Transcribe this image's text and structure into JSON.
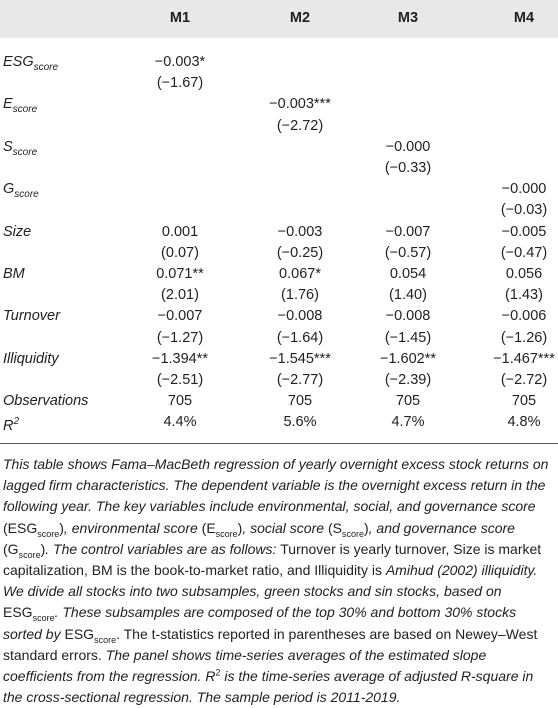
{
  "table": {
    "header": [
      "M1",
      "M2",
      "M3",
      "M4"
    ],
    "rows": [
      {
        "label": "ESG",
        "sub": "score",
        "values": [
          "−0.003*",
          null,
          null,
          null
        ],
        "t": [
          "(−1.67)",
          null,
          null,
          null
        ]
      },
      {
        "label": "E",
        "sub": "score",
        "values": [
          null,
          "−0.003***",
          null,
          null
        ],
        "t": [
          null,
          "(−2.72)",
          null,
          null
        ]
      },
      {
        "label": "S",
        "sub": "score",
        "values": [
          null,
          null,
          "−0.000",
          null
        ],
        "t": [
          null,
          null,
          "(−0.33)",
          null
        ]
      },
      {
        "label": "G",
        "sub": "score",
        "values": [
          null,
          null,
          null,
          "−0.000"
        ],
        "t": [
          null,
          null,
          null,
          "(−0.03)"
        ]
      },
      {
        "label": "Size",
        "values": [
          "0.001",
          "−0.003",
          "−0.007",
          "−0.005"
        ],
        "t": [
          "(0.07)",
          "(−0.25)",
          "(−0.57)",
          "(−0.47)"
        ]
      },
      {
        "label": "BM",
        "values": [
          "0.071**",
          "0.067*",
          "0.054",
          "0.056"
        ],
        "t": [
          "(2.01)",
          "(1.76)",
          "(1.40)",
          "(1.43)"
        ]
      },
      {
        "label": "Turnover",
        "values": [
          "−0.007",
          "−0.008",
          "−0.008",
          "−0.006"
        ],
        "t": [
          "(−1.27)",
          "(−1.64)",
          "(−1.45)",
          "(−1.26)"
        ]
      },
      {
        "label": "Illiquidity",
        "values": [
          "−1.394**",
          "−1.545***",
          "−1.602**",
          "−1.467***"
        ],
        "t": [
          "(−2.51)",
          "(−2.77)",
          "(−2.39)",
          "(−2.72)"
        ]
      },
      {
        "label": "Observations",
        "values": [
          "705",
          "705",
          "705",
          "705"
        ]
      },
      {
        "label": "R",
        "sup": "2",
        "values": [
          "4.4%",
          "5.6%",
          "4.7%",
          "4.8%"
        ]
      }
    ]
  },
  "caption": [
    {
      "text": "This table shows Fama–MacBeth regression of yearly overnight excess stock returns on lagged firm characteristics. The dependent variable is the overnight excess return in the following year. The key variables include environmental, social, and governance score ",
      "style": "i"
    },
    {
      "text": "(ESG",
      "style": "n"
    },
    {
      "text": "score",
      "style": "sub"
    },
    {
      "text": ")",
      "style": "n"
    },
    {
      "text": ", environmental score ",
      "style": "i"
    },
    {
      "text": "(E",
      "style": "n"
    },
    {
      "text": "score",
      "style": "sub"
    },
    {
      "text": ")",
      "style": "n"
    },
    {
      "text": ", social score ",
      "style": "i"
    },
    {
      "text": "(S",
      "style": "n"
    },
    {
      "text": "score",
      "style": "sub"
    },
    {
      "text": ")",
      "style": "n"
    },
    {
      "text": ", and governance score ",
      "style": "i"
    },
    {
      "text": "(G",
      "style": "n"
    },
    {
      "text": "score",
      "style": "sub"
    },
    {
      "text": ")",
      "style": "n"
    },
    {
      "text": ". The control variables are as follows: ",
      "style": "i"
    },
    {
      "text": "Turnover is yearly turnover, Size is market capitalization, BM is the book-to-market ratio, and Illiquidity is ",
      "style": "n"
    },
    {
      "text": "Amihud (2002) illiquidity. We divide all stocks into two subsamples, green stocks and sin stocks, based on ",
      "style": "i"
    },
    {
      "text": "ESG",
      "style": "n"
    },
    {
      "text": "score",
      "style": "sub"
    },
    {
      "text": ". These subsamples are composed of the top 30% and bottom 30% stocks sorted by ",
      "style": "i"
    },
    {
      "text": "ESG",
      "style": "n"
    },
    {
      "text": "score",
      "style": "sub"
    },
    {
      "text": ". The t-statistics reported in parentheses are based on Newey–West standard errors.",
      "style": "n"
    },
    {
      "text": " The panel shows time-series averages of the estimated slope coefficients from the regression. ",
      "style": "i"
    },
    {
      "text": "R",
      "style": "i"
    },
    {
      "text": "2",
      "style": "sup"
    },
    {
      "text": " is the time-series average of adjusted R-square in the cross-sectional regression. The sample period is 2011-2019.",
      "style": "i"
    }
  ]
}
